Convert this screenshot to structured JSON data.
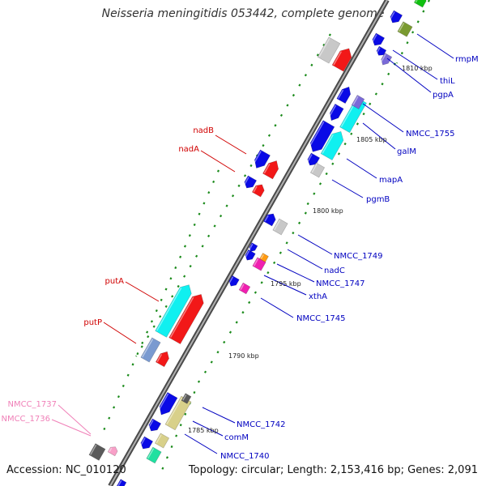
{
  "title": "Neisseria meningitidis 053442, complete genome",
  "accession": "Accession: NC_010120",
  "topology": "Topology: circular; Length: 2,153,416 bp; Genes: 2,091",
  "kbp_labels": [
    "1810 kbp",
    "1805 kbp",
    "1800 kbp",
    "1795 kbp",
    "1790 kbp",
    "1785 kbp"
  ],
  "gene_labels": {
    "rmpM": "rmpM",
    "thiL": "thiL",
    "pgpA": "pgpA",
    "NMCC_1755": "NMCC_1755",
    "galM": "galM",
    "mapA": "mapA",
    "pgmB": "pgmB",
    "NMCC_1749": "NMCC_1749",
    "nadC": "nadC",
    "NMCC_1747": "NMCC_1747",
    "xthA": "xthA",
    "NMCC_1745": "NMCC_1745",
    "NMCC_1742": "NMCC_1742",
    "comM": "comM",
    "NMCC_1740": "NMCC_1740",
    "nadB": "nadB",
    "nadA": "nadA",
    "putA": "putA",
    "putP": "putP",
    "NMCC_1737": "NMCC_1737",
    "NMCC_1736": "NMCC_1736"
  },
  "colors": {
    "blue": "#0a0ae6",
    "red": "#f21818",
    "cyan": "#10f0f0",
    "gray": "#c8c8c8",
    "darkgray": "#5a5a5a",
    "olive": "#7a9a30",
    "purple": "#7a6ad8",
    "magenta": "#f020b0",
    "orange": "#ff9a10",
    "khaki": "#d8d08a",
    "teal": "#20e0a0",
    "green": "#10c010",
    "steel": "#7a9ad0",
    "pink": "#f8a0c8",
    "label_blue": "#0000c0",
    "label_red": "#d00000",
    "label_pink": "#f080b8",
    "axis": "#7a7a7a",
    "tick": "#1a8a1a"
  }
}
